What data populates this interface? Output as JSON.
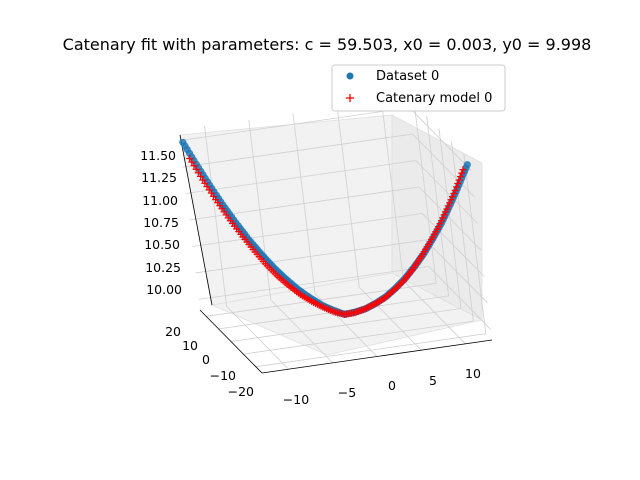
{
  "chart_data": {
    "type": "scatter",
    "projection": "3d",
    "title": "Catenary fit with parameters: c = 59.503, x0 = 0.003, y0 = 9.998",
    "parameters": {
      "c": 59.503,
      "x0": 0.003,
      "y0": 9.998
    },
    "legend": {
      "placement": "upper-right",
      "entries": [
        {
          "label": "Dataset 0",
          "marker": "circle",
          "color": "#1f77b4"
        },
        {
          "label": "Catenary model 0",
          "marker": "plus",
          "color": "#ff0000"
        }
      ]
    },
    "axes": {
      "x": {
        "ticks": [
          "−10",
          "−5",
          "0",
          "5",
          "10"
        ],
        "lim": [
          -13,
          13
        ]
      },
      "y": {
        "ticks": [
          "−20",
          "−10",
          "0",
          "10",
          "20"
        ],
        "lim": [
          -25,
          25
        ]
      },
      "z": {
        "ticks": [
          "10.00",
          "10.25",
          "10.50",
          "10.75",
          "11.00",
          "11.25",
          "11.50"
        ],
        "lim": [
          9.9,
          11.6
        ]
      }
    },
    "grid": true,
    "series": [
      {
        "name": "Dataset 0",
        "color": "#1f77b4",
        "marker": "circle",
        "x": [
          -13,
          -12,
          -11,
          -10,
          -9,
          -8,
          -7,
          -6,
          -5,
          -4,
          -3,
          -2,
          -1,
          0,
          1,
          2,
          3,
          4,
          5,
          6,
          7,
          8,
          9,
          10,
          11,
          12,
          13
        ],
        "y": [
          22,
          20.3,
          18.6,
          16.9,
          15.2,
          13.5,
          11.8,
          10.1,
          8.5,
          6.8,
          5.1,
          3.4,
          1.7,
          0,
          -1.7,
          -3.4,
          -5.1,
          -6.8,
          -8.5,
          -10.1,
          -11.8,
          -13.5,
          -15.2,
          -16.9,
          -18.6,
          -20.3,
          -22
        ],
        "z": [
          11.52,
          11.32,
          11.13,
          10.95,
          10.79,
          10.64,
          10.51,
          10.39,
          10.29,
          10.2,
          10.13,
          10.07,
          10.03,
          10.0,
          10.03,
          10.07,
          10.13,
          10.2,
          10.29,
          10.39,
          10.51,
          10.64,
          10.79,
          10.95,
          11.13,
          11.32,
          11.52
        ]
      },
      {
        "name": "Catenary model 0",
        "color": "#ff0000",
        "marker": "plus",
        "x": [
          -13,
          -12,
          -11,
          -10,
          -9,
          -8,
          -7,
          -6,
          -5,
          -4,
          -3,
          -2,
          -1,
          0,
          1,
          2,
          3,
          4,
          5,
          6,
          7,
          8,
          9,
          10,
          11,
          12,
          13
        ],
        "y": [
          17.5,
          16.2,
          14.8,
          13.5,
          12.1,
          10.8,
          9.4,
          8.1,
          6.7,
          5.4,
          4.0,
          2.7,
          1.3,
          0,
          -1.3,
          -2.7,
          -4.0,
          -5.4,
          -6.7,
          -8.1,
          -9.4,
          -10.8,
          -12.1,
          -13.5,
          -14.8,
          -16.2,
          -17.5
        ],
        "z": [
          11.42,
          11.22,
          11.04,
          10.87,
          10.72,
          10.58,
          10.45,
          10.34,
          10.25,
          10.17,
          10.11,
          10.06,
          10.02,
          10.0,
          10.02,
          10.06,
          10.11,
          10.17,
          10.25,
          10.34,
          10.45,
          10.58,
          10.72,
          10.87,
          11.04,
          11.22,
          11.42
        ]
      }
    ]
  }
}
